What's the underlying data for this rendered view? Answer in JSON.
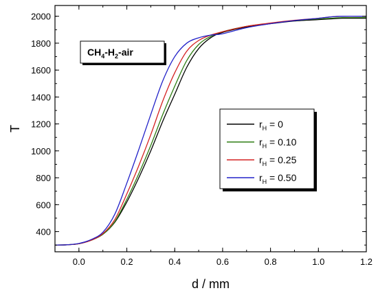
{
  "chart_data": {
    "type": "line",
    "xlabel": "d / mm",
    "ylabel": "T",
    "xlim": [
      -0.1,
      1.2
    ],
    "ylim": [
      250,
      2080
    ],
    "xticks": [
      0.0,
      0.2,
      0.4,
      0.6,
      0.8,
      1.0,
      1.2
    ],
    "xtick_labels": [
      "0.0",
      "0.2",
      "0.4",
      "0.6",
      "0.8",
      "1.0",
      "1.2"
    ],
    "yticks": [
      400,
      600,
      800,
      1000,
      1200,
      1400,
      1600,
      1800,
      2000
    ],
    "ytick_labels": [
      "400",
      "600",
      "800",
      "1000",
      "1200",
      "1400",
      "1600",
      "1800",
      "2000"
    ],
    "grid": false,
    "legend_position": "center-right",
    "annotation": {
      "main": "CH",
      "sub1": "4",
      "mid": "-H",
      "sub2": "2",
      "tail": "-air"
    },
    "series": [
      {
        "name": "r_H = 0",
        "label_main": "r",
        "label_sub": "H",
        "label_value": " = 0",
        "color": "#000000",
        "x": [
          -0.1,
          -0.05,
          0.0,
          0.05,
          0.1,
          0.15,
          0.2,
          0.25,
          0.3,
          0.35,
          0.4,
          0.45,
          0.5,
          0.55,
          0.6,
          0.7,
          0.8,
          0.9,
          1.0,
          1.05,
          1.1,
          1.2
        ],
        "y": [
          300,
          302,
          310,
          335,
          380,
          470,
          620,
          800,
          1000,
          1220,
          1420,
          1620,
          1760,
          1840,
          1880,
          1920,
          1945,
          1965,
          1975,
          1980,
          1985,
          1985
        ]
      },
      {
        "name": "r_H = 0.10",
        "label_main": "r",
        "label_sub": "H",
        "label_value": " = 0.10",
        "color": "#2e7d12",
        "x": [
          -0.1,
          -0.05,
          0.0,
          0.05,
          0.1,
          0.15,
          0.2,
          0.25,
          0.3,
          0.35,
          0.4,
          0.45,
          0.5,
          0.55,
          0.6,
          0.7,
          0.8,
          0.9,
          1.0,
          1.05,
          1.1,
          1.2
        ],
        "y": [
          300,
          302,
          310,
          335,
          380,
          475,
          640,
          830,
          1040,
          1270,
          1480,
          1670,
          1790,
          1850,
          1885,
          1925,
          1948,
          1968,
          1980,
          1985,
          1990,
          1990
        ]
      },
      {
        "name": "r_H = 0.25",
        "label_main": "r",
        "label_sub": "H",
        "label_value": " = 0.25",
        "color": "#d42020",
        "x": [
          -0.1,
          -0.05,
          0.0,
          0.05,
          0.1,
          0.15,
          0.2,
          0.25,
          0.3,
          0.35,
          0.4,
          0.45,
          0.5,
          0.55,
          0.6,
          0.7,
          0.8,
          0.9,
          1.0,
          1.05,
          1.1,
          1.2
        ],
        "y": [
          300,
          302,
          310,
          335,
          385,
          490,
          680,
          890,
          1120,
          1370,
          1580,
          1740,
          1820,
          1860,
          1885,
          1925,
          1950,
          1970,
          1985,
          1995,
          2000,
          2000
        ]
      },
      {
        "name": "r_H = 0.50",
        "label_main": "r",
        "label_sub": "H",
        "label_value": " = 0.50",
        "color": "#2020c8",
        "x": [
          -0.1,
          -0.05,
          0.0,
          0.05,
          0.1,
          0.15,
          0.2,
          0.25,
          0.3,
          0.35,
          0.4,
          0.45,
          0.5,
          0.55,
          0.6,
          0.7,
          0.8,
          0.9,
          1.0,
          1.05,
          1.1,
          1.2
        ],
        "y": [
          300,
          302,
          312,
          340,
          395,
          530,
          760,
          1010,
          1270,
          1520,
          1700,
          1800,
          1840,
          1860,
          1870,
          1915,
          1945,
          1968,
          1985,
          1995,
          2000,
          2000
        ]
      }
    ]
  }
}
